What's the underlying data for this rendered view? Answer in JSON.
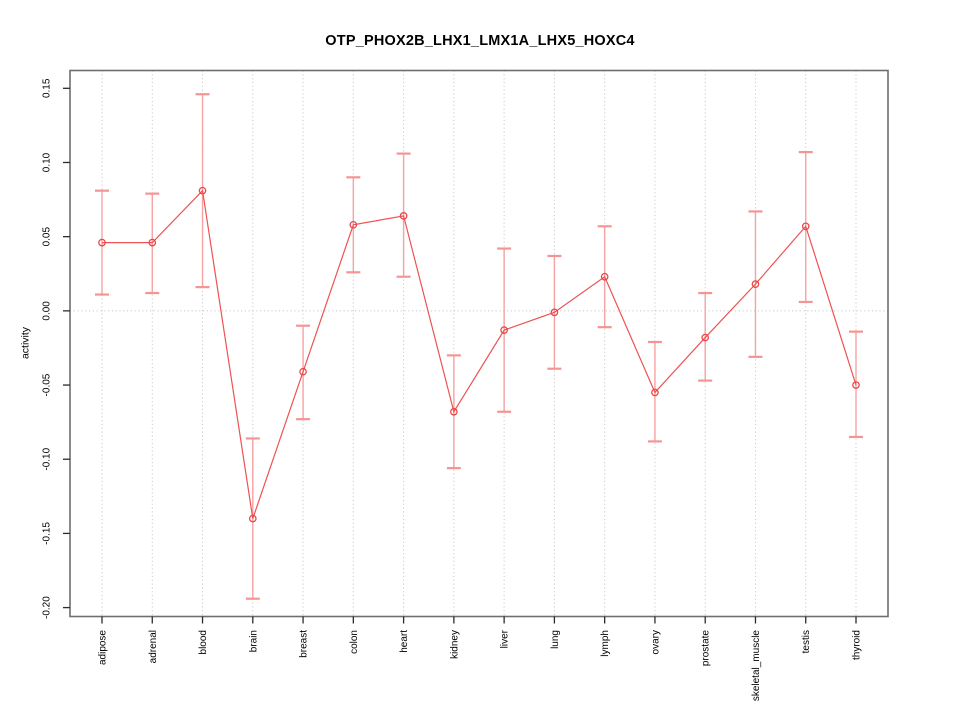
{
  "window": {
    "background": "#ffffff"
  },
  "chart_data": {
    "type": "line",
    "title": "OTP_PHOX2B_LHX1_LMX1A_LHX5_HOXC4",
    "xlabel": "",
    "ylabel": "activity",
    "categories": [
      "adipose",
      "adrenal",
      "blood",
      "brain",
      "breast",
      "colon",
      "heart",
      "kidney",
      "liver",
      "lung",
      "lymph",
      "ovary",
      "prostate",
      "skeletal_muscle",
      "testis",
      "thyroid"
    ],
    "series": [
      {
        "name": "activity",
        "marker": "open-circle",
        "values": [
          0.046,
          0.046,
          0.081,
          -0.14,
          -0.041,
          0.058,
          0.064,
          -0.068,
          -0.013,
          -0.001,
          0.023,
          -0.055,
          -0.018,
          0.018,
          0.057,
          -0.05
        ],
        "ci_low": [
          0.011,
          0.012,
          0.016,
          -0.194,
          -0.073,
          0.026,
          0.023,
          -0.106,
          -0.068,
          -0.039,
          -0.011,
          -0.088,
          -0.047,
          -0.031,
          0.006,
          -0.085
        ],
        "ci_high": [
          0.081,
          0.079,
          0.146,
          -0.086,
          -0.01,
          0.09,
          0.106,
          -0.03,
          0.042,
          0.037,
          0.057,
          -0.021,
          0.012,
          0.067,
          0.107,
          -0.014
        ]
      }
    ],
    "yticks": [
      0.15,
      0.1,
      0.05,
      0.0,
      -0.05,
      -0.1,
      -0.15,
      -0.2
    ],
    "ytick_labels": [
      "0.15",
      "0.10",
      "0.05",
      "0.00",
      "-0.05",
      "-0.10",
      "-0.15",
      "-0.20"
    ],
    "ylim": [
      -0.206,
      0.162
    ],
    "grid": {
      "vertical_dotted": true,
      "zero_line_dotted": true,
      "horizontal_other": false
    },
    "legend": "none",
    "colors": {
      "series_line": "#ee5252",
      "marker_stroke": "#e94848",
      "error_bar": "#f7a2a2",
      "error_cap": "#f59494",
      "gridline": "#c9c9c9",
      "box_border": "#6e6e6e",
      "tick": "#2b2b2b",
      "text": "#000000"
    }
  }
}
